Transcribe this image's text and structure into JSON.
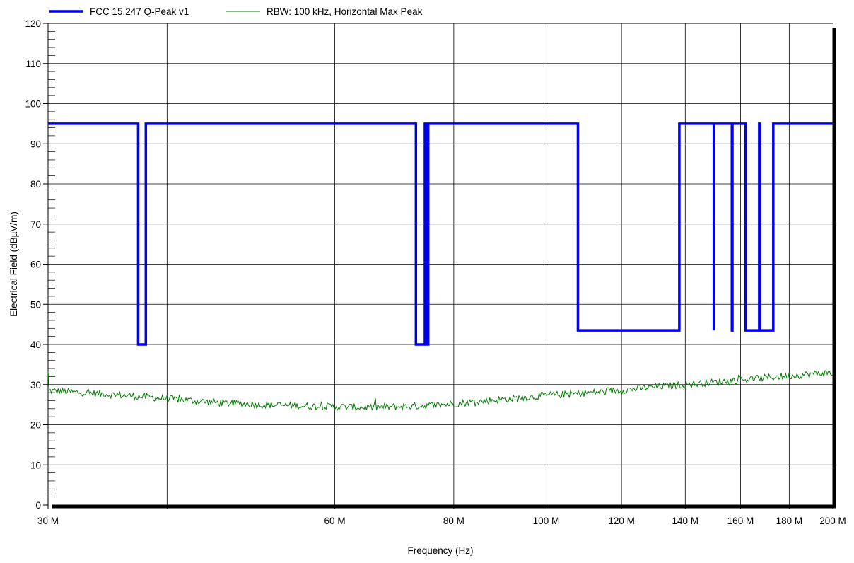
{
  "chart_data": {
    "type": "line",
    "xlabel": "Frequency (Hz)",
    "ylabel": "Electrical Field (dBµV/m)",
    "xlim": [
      30,
      200
    ],
    "ylim": [
      0,
      120
    ],
    "x_ticks": [
      30,
      60,
      80,
      100,
      120,
      140,
      160,
      180,
      200
    ],
    "x_tick_labels": [
      "30 M",
      "60 M",
      "80 M",
      "100 M",
      "120 M",
      "140 M",
      "160 M",
      "180 M",
      "200 M"
    ],
    "x_minor_tick": 40,
    "y_ticks": [
      0,
      10,
      20,
      30,
      40,
      50,
      60,
      70,
      80,
      90,
      100,
      110,
      120
    ],
    "y_tick_labels": [
      "0",
      "10",
      "20",
      "30",
      "40",
      "50",
      "60",
      "70",
      "80",
      "90",
      "100",
      "110",
      "120"
    ],
    "grid": true,
    "legend_position": "top-left",
    "series": [
      {
        "name": "FCC 15.247 Q-Peak v1",
        "color": "#0000e6",
        "x": [
          30,
          37.3,
          37.3,
          38.0,
          38.0,
          73.0,
          73.0,
          74.6,
          74.6,
          74.9,
          74.9,
          75.2,
          75.2,
          108.0,
          108.0,
          138.0,
          138.0,
          150.0,
          150.0,
          150.0,
          150.0,
          156.7,
          156.7,
          156.9,
          156.9,
          162.0,
          162.0,
          167.4,
          167.4,
          167.7,
          167.7,
          173.2,
          173.2,
          200
        ],
        "y": [
          95,
          95,
          40,
          40,
          95,
          95,
          40,
          40,
          95,
          95,
          40,
          40,
          95,
          95,
          43.5,
          43.5,
          95,
          95,
          43.5,
          43.5,
          95,
          95,
          43.5,
          43.5,
          95,
          95,
          43.5,
          43.5,
          95,
          95,
          43.5,
          43.5,
          95,
          95
        ]
      },
      {
        "name": "RBW: 100 kHz, Horizontal Max Peak",
        "color": "#007a00",
        "x": [
          30,
          35,
          40,
          45,
          50,
          55,
          60,
          65,
          70,
          75,
          80,
          85,
          90,
          95,
          100,
          105,
          110,
          115,
          120,
          125,
          130,
          135,
          140,
          145,
          150,
          155,
          160,
          165,
          170,
          175,
          180,
          185,
          190,
          195,
          200
        ],
        "y": [
          28.5,
          27.5,
          26.5,
          25.5,
          25.0,
          24.7,
          24.5,
          24.3,
          24.5,
          24.8,
          25.2,
          25.8,
          26.3,
          26.8,
          27.3,
          27.6,
          27.9,
          28.2,
          28.6,
          29.0,
          29.4,
          29.7,
          30.0,
          30.3,
          30.6,
          30.9,
          31.2,
          31.5,
          31.7,
          32.0,
          32.2,
          32.4,
          32.6,
          32.8,
          33.0
        ]
      }
    ]
  }
}
